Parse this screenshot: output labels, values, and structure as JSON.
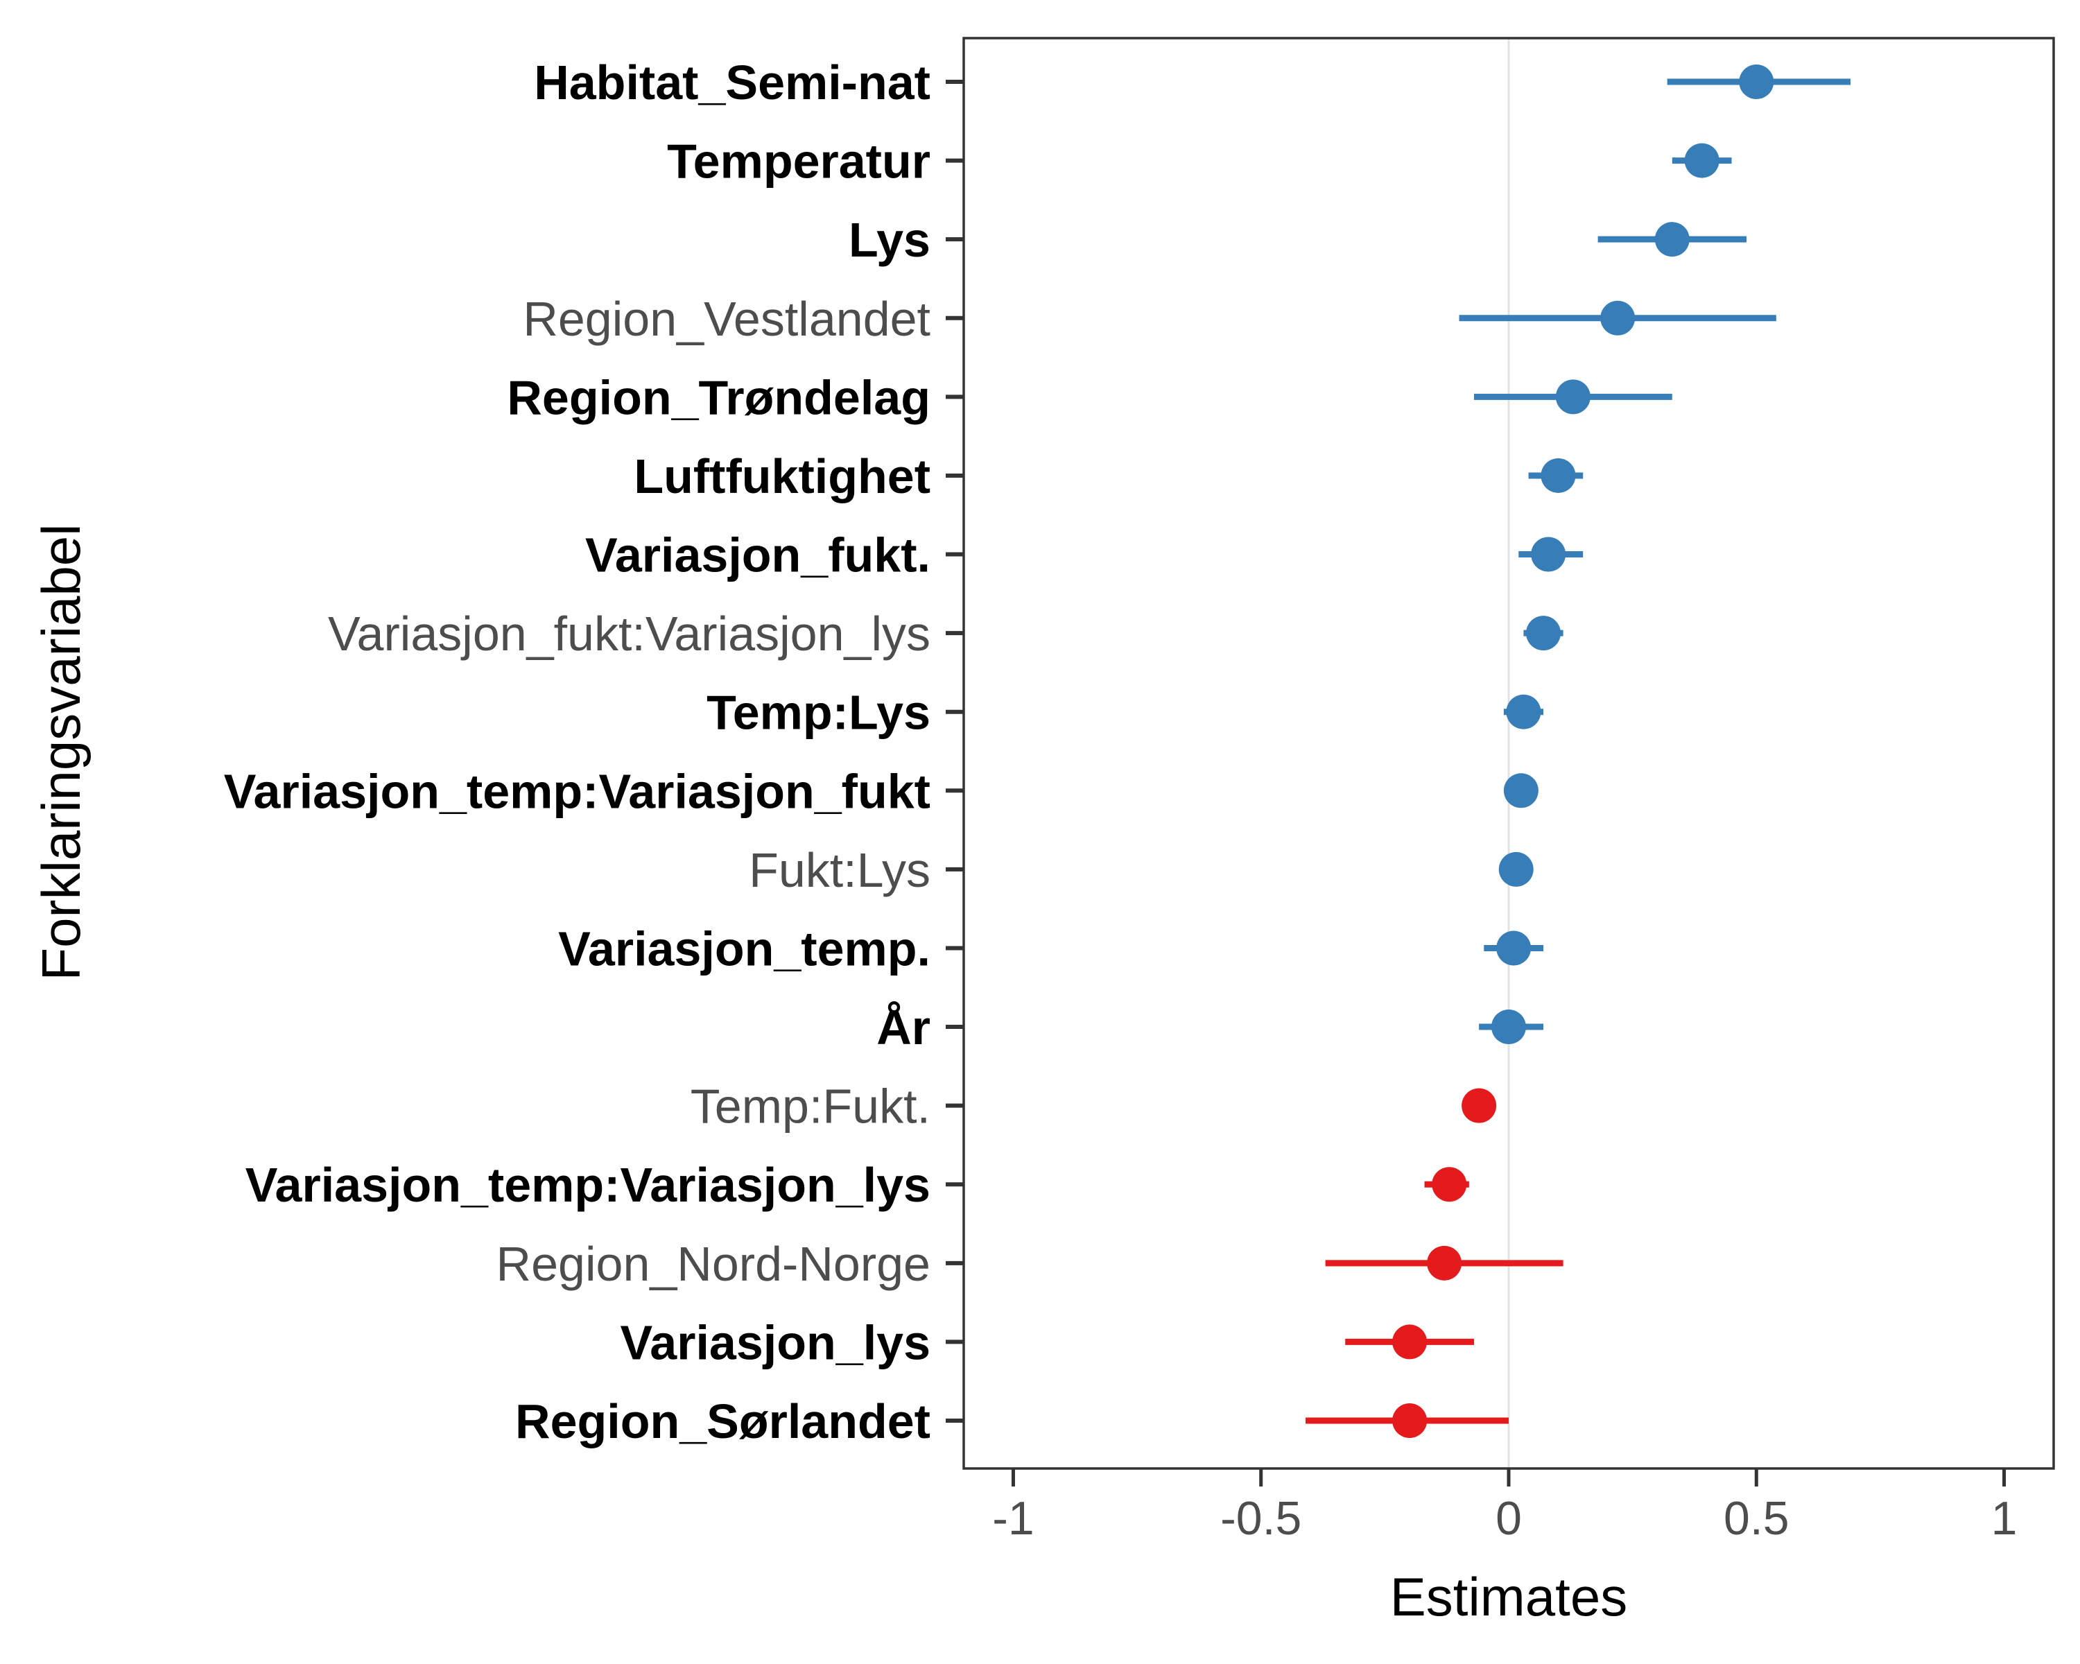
{
  "chart_data": {
    "type": "scatter",
    "variant": "coefficient-plot-with-error-bars",
    "xlabel": "Estimates",
    "ylabel": "Forklaringsvariabel",
    "xlim": [
      -1.1,
      1.1
    ],
    "x_ticks": [
      -1,
      -0.5,
      0,
      0.5,
      1
    ],
    "x_tick_labels": [
      "-1",
      "-0.5",
      "0",
      "0.5",
      "1"
    ],
    "reference_line_x": 0,
    "grid": false,
    "colors": {
      "positive": "#377EB8",
      "negative": "#E41A1C"
    },
    "points": [
      {
        "label": "Habitat_Semi-nat",
        "estimate": 0.5,
        "low": 0.32,
        "high": 0.69,
        "bold": true
      },
      {
        "label": "Temperatur",
        "estimate": 0.39,
        "low": 0.33,
        "high": 0.45,
        "bold": true
      },
      {
        "label": "Lys",
        "estimate": 0.33,
        "low": 0.18,
        "high": 0.48,
        "bold": true
      },
      {
        "label": "Region_Vestlandet",
        "estimate": 0.22,
        "low": -0.1,
        "high": 0.54,
        "bold": false
      },
      {
        "label": "Region_Trøndelag",
        "estimate": 0.13,
        "low": -0.07,
        "high": 0.33,
        "bold": true
      },
      {
        "label": "Luftfuktighet",
        "estimate": 0.1,
        "low": 0.04,
        "high": 0.15,
        "bold": true
      },
      {
        "label": "Variasjon_fukt.",
        "estimate": 0.08,
        "low": 0.02,
        "high": 0.15,
        "bold": true
      },
      {
        "label": "Variasjon_fukt:Variasjon_lys",
        "estimate": 0.07,
        "low": 0.03,
        "high": 0.11,
        "bold": false
      },
      {
        "label": "Temp:Lys",
        "estimate": 0.03,
        "low": -0.01,
        "high": 0.07,
        "bold": true
      },
      {
        "label": "Variasjon_temp:Variasjon_fukt",
        "estimate": 0.025,
        "low": 0.01,
        "high": 0.04,
        "bold": true
      },
      {
        "label": "Fukt:Lys",
        "estimate": 0.015,
        "low": 0.0,
        "high": 0.03,
        "bold": false
      },
      {
        "label": "Variasjon_temp.",
        "estimate": 0.01,
        "low": -0.05,
        "high": 0.07,
        "bold": true
      },
      {
        "label": "År",
        "estimate": 0.0,
        "low": -0.06,
        "high": 0.07,
        "bold": true
      },
      {
        "label": "Temp:Fukt.",
        "estimate": -0.06,
        "low": -0.09,
        "high": -0.03,
        "bold": false
      },
      {
        "label": "Variasjon_temp:Variasjon_lys",
        "estimate": -0.12,
        "low": -0.17,
        "high": -0.08,
        "bold": true
      },
      {
        "label": "Region_Nord-Norge",
        "estimate": -0.13,
        "low": -0.37,
        "high": 0.11,
        "bold": false
      },
      {
        "label": "Variasjon_lys",
        "estimate": -0.2,
        "low": -0.33,
        "high": -0.07,
        "bold": true
      },
      {
        "label": "Region_Sørlandet",
        "estimate": -0.2,
        "low": -0.41,
        "high": 0.0,
        "bold": true
      }
    ]
  }
}
